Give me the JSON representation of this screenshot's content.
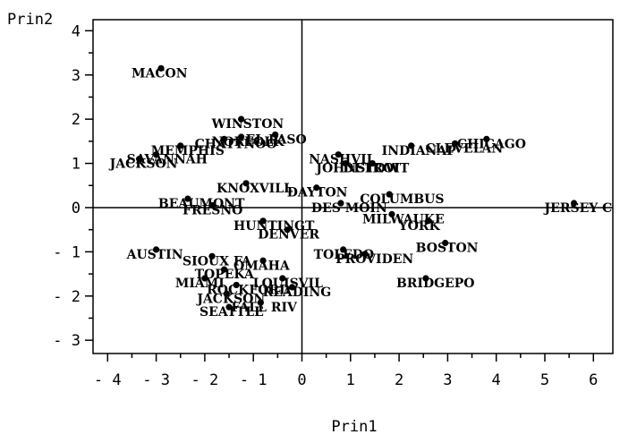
{
  "chart_data": {
    "type": "scatter",
    "xlabel": "Prin1",
    "ylabel": "Prin2",
    "xlim": [
      -4.3,
      6.4
    ],
    "ylim": [
      -3.3,
      4.25
    ],
    "xticks": [
      -4,
      -3,
      -2,
      -1,
      0,
      1,
      2,
      3,
      4,
      5,
      6
    ],
    "yticks": [
      -3,
      -2,
      -1,
      0,
      1,
      2,
      3,
      4
    ],
    "xtick_labels": [
      "- 4",
      "- 3",
      "- 2",
      "- 1",
      "0",
      "1",
      "2",
      "3",
      "4",
      "5",
      "6"
    ],
    "ytick_labels": [
      "- 3",
      "- 2",
      "- 1",
      "0",
      "1",
      "2",
      "3",
      "4"
    ],
    "reference_lines": {
      "x": 0,
      "y": 0
    },
    "grid": false,
    "legend": "none",
    "points": [
      {
        "label": "MACON",
        "x": -2.9,
        "y": 3.15
      },
      {
        "label": "WINSTON",
        "x": -1.25,
        "y": 2.0
      },
      {
        "label": "EL PASO",
        "x": -0.55,
        "y": 1.65
      },
      {
        "label": "CHATTNOO",
        "x": -1.6,
        "y": 1.55
      },
      {
        "label": "NORFOLK",
        "x": -1.25,
        "y": 1.6
      },
      {
        "label": "MEMPHIS",
        "x": -2.5,
        "y": 1.4
      },
      {
        "label": "SAVANNAH",
        "x": -3.0,
        "y": 1.2
      },
      {
        "label": "JACKSON",
        "x": -3.35,
        "y": 1.1
      },
      {
        "label": "NASHVIL",
        "x": 0.75,
        "y": 1.2
      },
      {
        "label": "JOHNSTOW",
        "x": 0.9,
        "y": 1.0
      },
      {
        "label": "DETROIT",
        "x": 1.45,
        "y": 1.0
      },
      {
        "label": "INDIANAP",
        "x": 2.25,
        "y": 1.4
      },
      {
        "label": "CLEVELAN",
        "x": 3.15,
        "y": 1.45
      },
      {
        "label": "CHICAGO",
        "x": 3.8,
        "y": 1.55
      },
      {
        "label": "KNOXVILL",
        "x": -1.15,
        "y": 0.55
      },
      {
        "label": "DAYTON",
        "x": 0.3,
        "y": 0.45
      },
      {
        "label": "COLUMBUS",
        "x": 1.8,
        "y": 0.3
      },
      {
        "label": "BEAUMONT",
        "x": -2.35,
        "y": 0.2
      },
      {
        "label": "FRESNO",
        "x": -1.85,
        "y": 0.05
      },
      {
        "label": "DES MOIN",
        "x": 0.8,
        "y": 0.1
      },
      {
        "label": "MILWAUKE",
        "x": 1.85,
        "y": -0.15
      },
      {
        "label": "YORK",
        "x": 2.6,
        "y": -0.3
      },
      {
        "label": "JERSEY C",
        "x": 5.6,
        "y": 0.1
      },
      {
        "label": "HUNTINGT",
        "x": -0.8,
        "y": -0.3
      },
      {
        "label": "DENVER",
        "x": -0.3,
        "y": -0.5
      },
      {
        "label": "BOSTON",
        "x": 2.95,
        "y": -0.8
      },
      {
        "label": "AUSTIN",
        "x": -3.0,
        "y": -0.95
      },
      {
        "label": "TOLEDO",
        "x": 0.85,
        "y": -0.95
      },
      {
        "label": "PROVIDEN",
        "x": 1.3,
        "y": -1.05
      },
      {
        "label": "SIOUX FA",
        "x": -1.85,
        "y": -1.1
      },
      {
        "label": "OMAHA",
        "x": -0.8,
        "y": -1.2
      },
      {
        "label": "TOPEKA",
        "x": -1.6,
        "y": -1.4
      },
      {
        "label": "MIAMI",
        "x": -2.0,
        "y": -1.6
      },
      {
        "label": "LOUISVIL",
        "x": -0.4,
        "y": -1.6
      },
      {
        "label": "ROCKFORD",
        "x": -1.35,
        "y": -1.75
      },
      {
        "label": "READING",
        "x": -0.2,
        "y": -1.8
      },
      {
        "label": "BRIDGEPO",
        "x": 2.55,
        "y": -1.6
      },
      {
        "label": "JACKSON",
        "x": -1.55,
        "y": -1.95
      },
      {
        "label": "FALL RIV",
        "x": -0.85,
        "y": -2.15
      },
      {
        "label": "SEATTLE",
        "x": -1.5,
        "y": -2.25
      }
    ]
  }
}
